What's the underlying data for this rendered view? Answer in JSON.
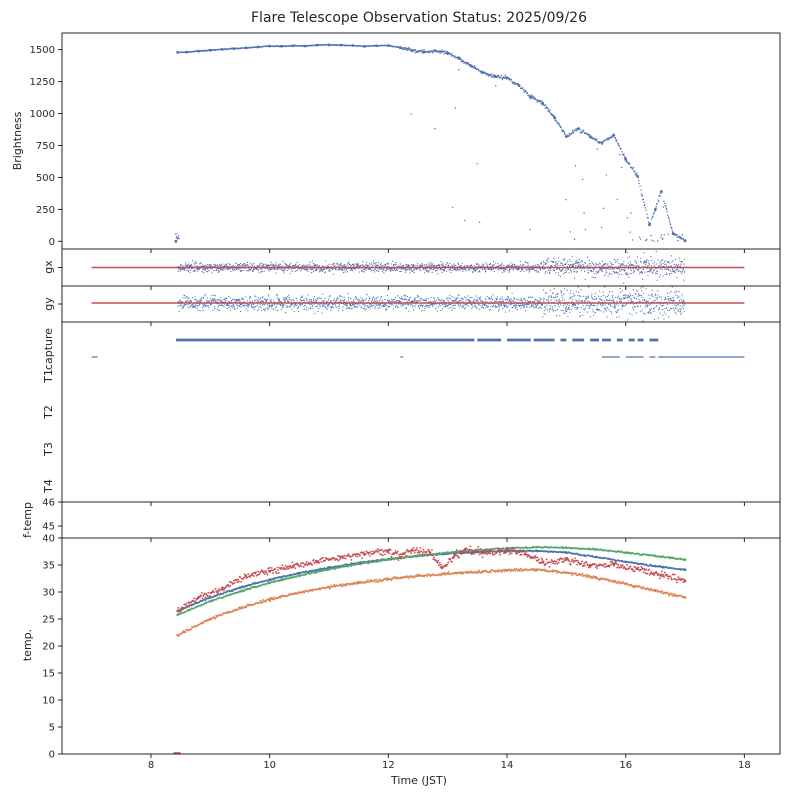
{
  "chart_data": {
    "type": "scatter",
    "title": "Flare Telescope Observation Status: 2025/09/26",
    "xlabel": "Time (JST)",
    "xlim": [
      6.5,
      18.6
    ],
    "xticks": [
      8,
      10,
      12,
      14,
      16,
      18
    ],
    "colors": {
      "blue": "#4c72b0",
      "orange": "#dd8452",
      "green": "#55a868",
      "red": "#c44e52"
    },
    "panels": [
      {
        "id": "brightness",
        "ylabel": "Brightness",
        "ylim": [
          -60,
          1630
        ],
        "yticks": [
          0,
          250,
          500,
          750,
          1000,
          1250,
          1500
        ],
        "series": [
          {
            "name": "brightness",
            "color": "blue",
            "points": [
              [
                8.42,
                0
              ],
              [
                8.45,
                1478
              ],
              [
                8.6,
                1480
              ],
              [
                8.8,
                1488
              ],
              [
                9.0,
                1495
              ],
              [
                9.2,
                1502
              ],
              [
                9.4,
                1508
              ],
              [
                9.6,
                1513
              ],
              [
                9.8,
                1520
              ],
              [
                10.0,
                1528
              ],
              [
                10.2,
                1526
              ],
              [
                10.4,
                1530
              ],
              [
                10.6,
                1528
              ],
              [
                10.8,
                1535
              ],
              [
                11.0,
                1537
              ],
              [
                11.2,
                1535
              ],
              [
                11.4,
                1532
              ],
              [
                11.6,
                1525
              ],
              [
                11.8,
                1530
              ],
              [
                12.0,
                1532
              ],
              [
                12.2,
                1515
              ],
              [
                12.4,
                1495
              ],
              [
                12.6,
                1482
              ],
              [
                12.8,
                1490
              ],
              [
                13.0,
                1470
              ],
              [
                13.2,
                1430
              ],
              [
                13.4,
                1370
              ],
              [
                13.6,
                1320
              ],
              [
                13.8,
                1290
              ],
              [
                14.0,
                1280
              ],
              [
                14.2,
                1220
              ],
              [
                14.4,
                1130
              ],
              [
                14.6,
                1080
              ],
              [
                14.8,
                970
              ],
              [
                15.0,
                820
              ],
              [
                15.2,
                880
              ],
              [
                15.4,
                820
              ],
              [
                15.6,
                770
              ],
              [
                15.8,
                830
              ],
              [
                16.0,
                640
              ],
              [
                16.2,
                510
              ],
              [
                16.4,
                130
              ],
              [
                16.5,
                250
              ],
              [
                16.6,
                390
              ],
              [
                16.8,
                60
              ],
              [
                17.0,
                5
              ]
            ]
          }
        ]
      },
      {
        "id": "gx",
        "ylabel": "gx",
        "reference": {
          "from": 7.0,
          "to": 18.0,
          "color": "red"
        },
        "series": [
          {
            "name": "gx",
            "color": "blue",
            "start": 8.45,
            "end": 17.0
          }
        ]
      },
      {
        "id": "gy",
        "ylabel": "gy",
        "reference": {
          "from": 7.0,
          "to": 18.0,
          "color": "red"
        },
        "series": [
          {
            "name": "gy",
            "color": "blue",
            "start": 8.45,
            "end": 17.0
          }
        ]
      },
      {
        "id": "status",
        "categories": [
          "capture",
          "T1",
          "T2",
          "T3",
          "T4"
        ],
        "series": [
          {
            "name": "capture",
            "color": "blue",
            "intervals": [
              [
                8.42,
                13.45
              ],
              [
                13.5,
                13.9
              ],
              [
                14.0,
                14.4
              ],
              [
                14.45,
                14.8
              ],
              [
                14.9,
                15.0
              ],
              [
                15.1,
                15.3
              ],
              [
                15.4,
                15.55
              ],
              [
                15.6,
                15.75
              ],
              [
                15.85,
                15.95
              ],
              [
                16.05,
                16.15
              ],
              [
                16.2,
                16.3
              ],
              [
                16.4,
                16.55
              ]
            ]
          },
          {
            "name": "T1",
            "color": "blue",
            "intervals": [
              [
                7.0,
                7.1
              ],
              [
                12.2,
                12.25
              ],
              [
                15.6,
                15.9
              ],
              [
                16.0,
                16.3
              ],
              [
                16.4,
                16.5
              ],
              [
                16.55,
                18.0
              ]
            ]
          }
        ]
      },
      {
        "id": "ftemp",
        "ylabel": "f-temp",
        "ylim": [
          44.5,
          46
        ],
        "yticks": [
          45,
          46
        ],
        "series": []
      },
      {
        "id": "temp",
        "ylabel": "temp.",
        "ylim": [
          0,
          40
        ],
        "yticks": [
          0,
          5,
          10,
          15,
          20,
          25,
          30,
          35,
          40
        ],
        "series": [
          {
            "name": "blue",
            "color": "blue",
            "points": [
              [
                8.45,
                26.5
              ],
              [
                9.0,
                29.0
              ],
              [
                9.5,
                30.8
              ],
              [
                10.0,
                32.3
              ],
              [
                10.5,
                33.5
              ],
              [
                11.0,
                34.5
              ],
              [
                11.5,
                35.4
              ],
              [
                12.0,
                36.1
              ],
              [
                12.5,
                36.7
              ],
              [
                13.0,
                37.1
              ],
              [
                13.5,
                37.4
              ],
              [
                14.0,
                37.6
              ],
              [
                14.5,
                37.6
              ],
              [
                15.0,
                37.3
              ],
              [
                15.5,
                36.5
              ],
              [
                16.0,
                35.6
              ],
              [
                16.5,
                34.8
              ],
              [
                17.0,
                34.1
              ]
            ]
          },
          {
            "name": "green",
            "color": "green",
            "points": [
              [
                8.45,
                25.8
              ],
              [
                9.0,
                28.3
              ],
              [
                9.5,
                30.1
              ],
              [
                10.0,
                31.7
              ],
              [
                10.5,
                33.0
              ],
              [
                11.0,
                34.2
              ],
              [
                11.5,
                35.2
              ],
              [
                12.0,
                36.0
              ],
              [
                12.5,
                36.7
              ],
              [
                13.0,
                37.3
              ],
              [
                13.5,
                37.8
              ],
              [
                14.0,
                38.1
              ],
              [
                14.5,
                38.3
              ],
              [
                15.0,
                38.2
              ],
              [
                15.5,
                37.9
              ],
              [
                16.0,
                37.3
              ],
              [
                16.5,
                36.7
              ],
              [
                17.0,
                36.0
              ]
            ]
          },
          {
            "name": "orange",
            "color": "orange",
            "points": [
              [
                8.45,
                22.0
              ],
              [
                9.0,
                25.0
              ],
              [
                9.5,
                27.0
              ],
              [
                10.0,
                28.6
              ],
              [
                10.5,
                29.9
              ],
              [
                11.0,
                30.9
              ],
              [
                11.5,
                31.7
              ],
              [
                12.0,
                32.4
              ],
              [
                12.5,
                33.0
              ],
              [
                13.0,
                33.4
              ],
              [
                13.5,
                33.7
              ],
              [
                14.0,
                34.0
              ],
              [
                14.5,
                34.1
              ],
              [
                15.0,
                33.6
              ],
              [
                15.5,
                32.7
              ],
              [
                16.0,
                31.5
              ],
              [
                16.5,
                30.2
              ],
              [
                17.0,
                29.0
              ]
            ]
          },
          {
            "name": "red",
            "color": "red",
            "points": [
              [
                8.45,
                26.5
              ],
              [
                8.8,
                29.0
              ],
              [
                9.2,
                30.5
              ],
              [
                9.6,
                33.0
              ],
              [
                10.0,
                33.8
              ],
              [
                10.4,
                34.8
              ],
              [
                10.8,
                35.5
              ],
              [
                11.2,
                36.5
              ],
              [
                11.6,
                37.0
              ],
              [
                12.0,
                37.8
              ],
              [
                12.2,
                36.5
              ],
              [
                12.4,
                37.8
              ],
              [
                12.7,
                37.3
              ],
              [
                12.9,
                34.5
              ],
              [
                13.1,
                36.5
              ],
              [
                13.3,
                38.0
              ],
              [
                13.6,
                37.2
              ],
              [
                14.0,
                37.8
              ],
              [
                14.3,
                37.0
              ],
              [
                14.6,
                35.5
              ],
              [
                15.0,
                36.0
              ],
              [
                15.4,
                35.0
              ],
              [
                15.8,
                35.0
              ],
              [
                16.2,
                34.3
              ],
              [
                16.6,
                33.2
              ],
              [
                17.0,
                32.0
              ]
            ]
          }
        ]
      }
    ]
  }
}
